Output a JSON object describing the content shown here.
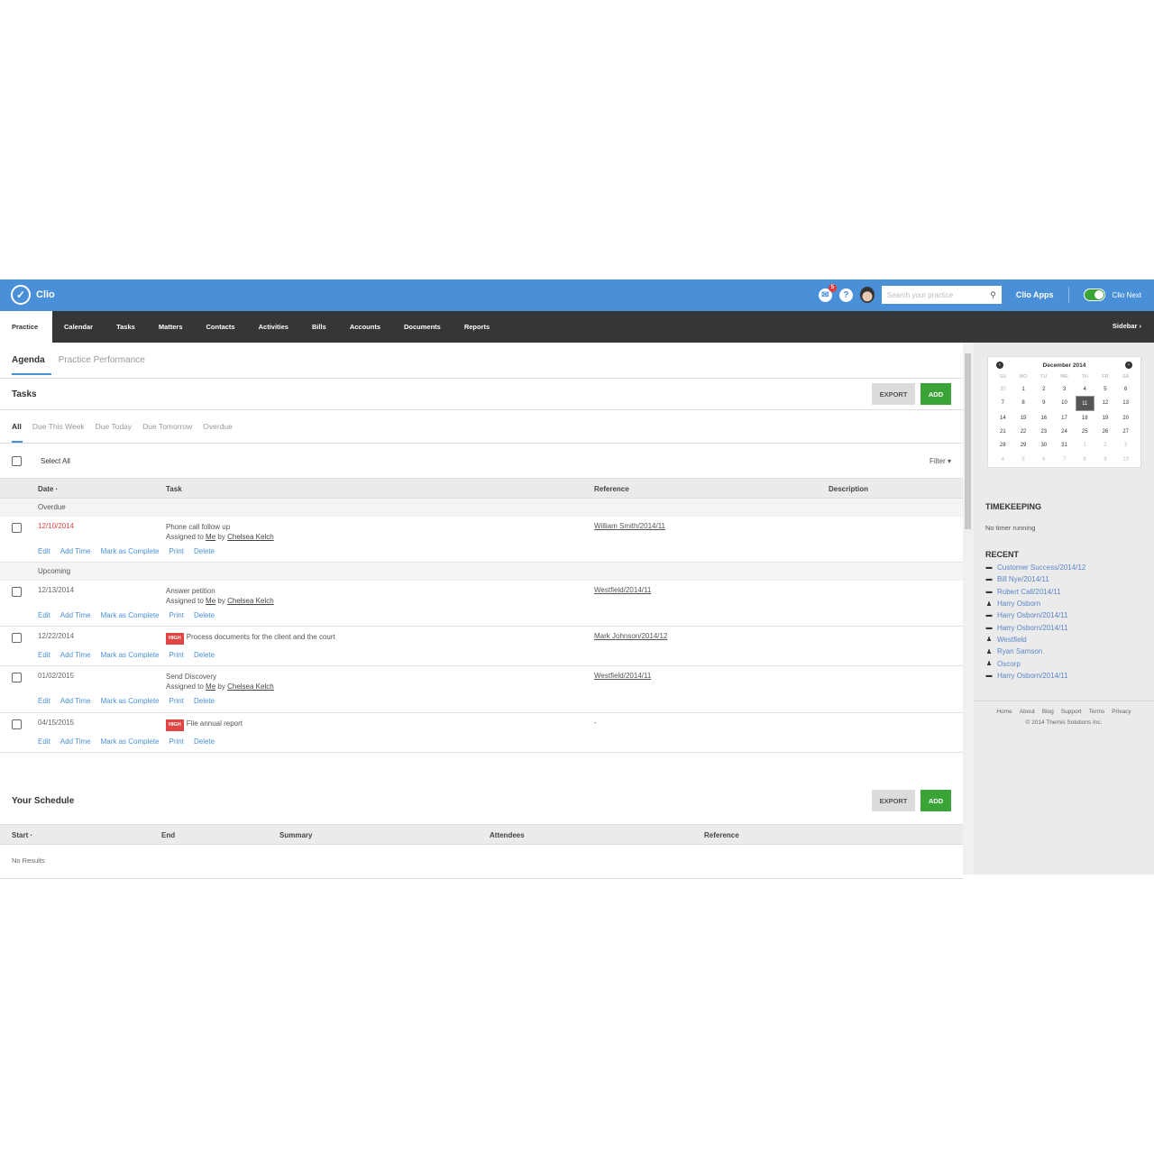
{
  "app": {
    "name": "Clio"
  },
  "topbar": {
    "notification_count": "5",
    "search_placeholder": "Search your practice",
    "apps_label": "Clio Apps",
    "clio_next_label": "Clio Next",
    "clio_next_on": true,
    "brand_color": "#4a90d9"
  },
  "nav": {
    "items": [
      "Practice",
      "Calendar",
      "Tasks",
      "Matters",
      "Contacts",
      "Activities",
      "Bills",
      "Accounts",
      "Documents",
      "Reports"
    ],
    "active": "Practice",
    "sidebar_label": "Sidebar ›"
  },
  "subtabs": [
    "Agenda",
    "Practice Performance"
  ],
  "tasks": {
    "title": "Tasks",
    "export_label": "EXPORT",
    "add_label": "ADD",
    "filters": [
      "All",
      "Due This Week",
      "Due Today",
      "Due Tomorrow",
      "Overdue"
    ],
    "select_all": "Select All",
    "filter_label": "Filter ▾",
    "columns": [
      "Date ·",
      "Task",
      "Reference",
      "Description"
    ],
    "groups": [
      "Overdue",
      "Upcoming"
    ],
    "actions": [
      "Edit",
      "Add Time",
      "Mark as Complete",
      "Print",
      "Delete"
    ],
    "priority_label": "HIGH",
    "assigned_prefix": "Assigned to",
    "assigned_me": "Me",
    "assigned_by": "by",
    "assigned_from": "Chelsea Kelch",
    "rows": [
      {
        "date": "12/10/2014",
        "task": "Phone call follow up",
        "reference": "William Smith/2014/11"
      },
      {
        "date": "12/13/2014",
        "task": "Answer petition",
        "reference": "Westfield/2014/11"
      },
      {
        "date": "12/22/2014",
        "task": "Process documents for the client and the court",
        "reference": "Mark Johnson/2014/12"
      },
      {
        "date": "01/02/2015",
        "task": "Send Discovery",
        "reference": "Westfield/2014/11"
      },
      {
        "date": "04/15/2015",
        "task": "File annual report",
        "reference": "-"
      }
    ]
  },
  "schedule": {
    "title": "Your Schedule",
    "export_label": "EXPORT",
    "add_label": "ADD",
    "columns": [
      "Start ·",
      "End",
      "Summary",
      "Attendees",
      "Reference"
    ],
    "empty": "No Results"
  },
  "sidebar": {
    "calendar": {
      "month": "December 2014",
      "dow": [
        "SU",
        "MO",
        "TU",
        "WE",
        "TH",
        "FR",
        "SA"
      ],
      "weeks": [
        [
          "30",
          "1",
          "2",
          "3",
          "4",
          "5",
          "6"
        ],
        [
          "7",
          "8",
          "9",
          "10",
          "11",
          "12",
          "13"
        ],
        [
          "14",
          "15",
          "16",
          "17",
          "18",
          "19",
          "20"
        ],
        [
          "21",
          "22",
          "23",
          "24",
          "25",
          "26",
          "27"
        ],
        [
          "28",
          "29",
          "30",
          "31",
          "1",
          "2",
          "3"
        ],
        [
          "4",
          "5",
          "6",
          "7",
          "8",
          "9",
          "10"
        ]
      ],
      "selected": "11"
    },
    "timekeeping_title": "TIMEKEEPING",
    "timekeeping_status": "No timer running",
    "recent_title": "RECENT",
    "recent": [
      {
        "icon": "briefcase-icon",
        "label": "Customer Success/2014/12"
      },
      {
        "icon": "briefcase-icon",
        "label": "Bill Nye/2014/11"
      },
      {
        "icon": "briefcase-icon",
        "label": "Robert Call/2014/11"
      },
      {
        "icon": "person-icon",
        "label": "Harry Osborn"
      },
      {
        "icon": "briefcase-icon",
        "label": "Harry Osborn/2014/11"
      },
      {
        "icon": "briefcase-icon",
        "label": "Harry Osborn/2014/11"
      },
      {
        "icon": "person-icon",
        "label": "Westfield"
      },
      {
        "icon": "person-icon",
        "label": "Ryan Samson"
      },
      {
        "icon": "person-icon",
        "label": "Oscorp"
      },
      {
        "icon": "briefcase-icon",
        "label": "Harry Osborn/2014/11"
      }
    ],
    "footer_links": [
      "Home",
      "About",
      "Blog",
      "Support",
      "Terms",
      "Privacy"
    ],
    "copyright": "© 2014 Themis Solutions Inc."
  }
}
